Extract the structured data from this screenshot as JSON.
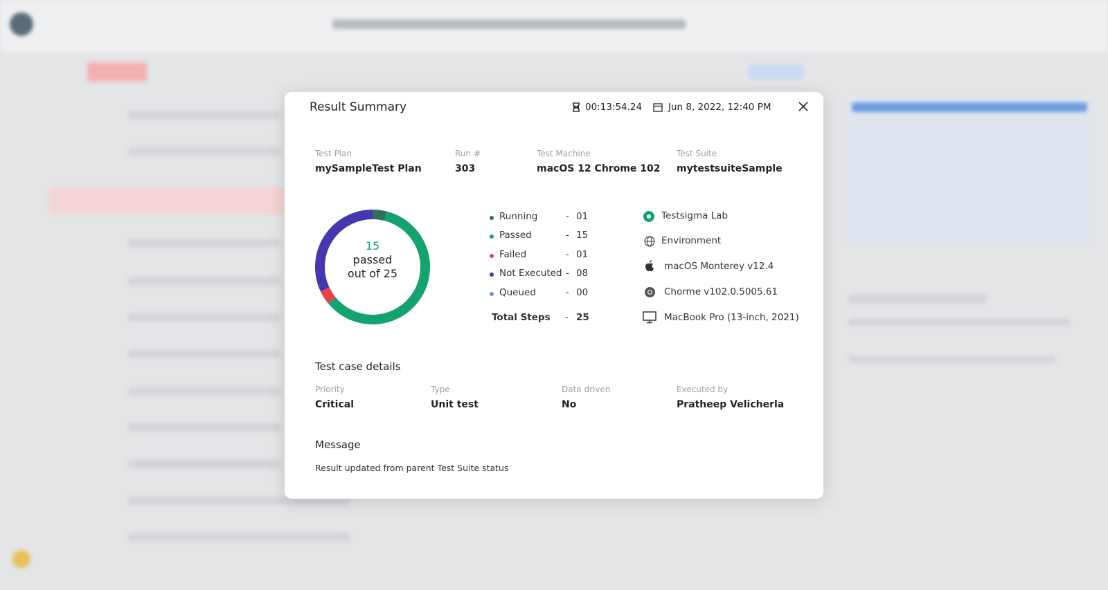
{
  "header": {
    "title": "Result Summary",
    "duration": "00:13:54.24",
    "date": "Jun 8, 2022, 12:40 PM"
  },
  "run_info": [
    {
      "label": "Test Plan",
      "value": "mySampleTest Plan"
    },
    {
      "label": "Run #",
      "value": "303"
    },
    {
      "label": "Test Machine",
      "value": "macOS 12 Chrome 102"
    },
    {
      "label": "Test Suite",
      "value": "mytestsuiteSample"
    }
  ],
  "summary": {
    "center": {
      "passed": 15,
      "passed_label": "passed",
      "total_prefix": "out of",
      "total": 25
    },
    "separator": "-",
    "status": [
      {
        "name": "Running",
        "value": 1,
        "label": "01",
        "color": "#2e6f5c"
      },
      {
        "name": "Passed",
        "value": 15,
        "label": "15",
        "color": "#13a36f"
      },
      {
        "name": "Failed",
        "value": 1,
        "label": "01",
        "color": "#e8434b"
      },
      {
        "name": "Not Executed",
        "value": 8,
        "label": "08",
        "color": "#4437b0"
      },
      {
        "name": "Queued",
        "value": 0,
        "label": "00",
        "color": "#6a8fd8"
      }
    ],
    "total_steps": {
      "label": "Total Steps",
      "value": 25
    }
  },
  "environment": [
    "Testsigma Lab",
    "Environment",
    "macOS Monterey v12.4",
    "Chorme v102.0.5005.61",
    "MacBook Pro (13-inch, 2021)"
  ],
  "details": {
    "title": "Test case details",
    "fields": [
      {
        "label": "Priority",
        "value": "Critical"
      },
      {
        "label": "Type",
        "value": "Unit test"
      },
      {
        "label": "Data driven",
        "value": "No"
      },
      {
        "label": "Executed by",
        "value": "Pratheep Velicherla"
      }
    ]
  },
  "message": {
    "title": "Message",
    "text": "Result updated from parent Test Suite status"
  }
}
